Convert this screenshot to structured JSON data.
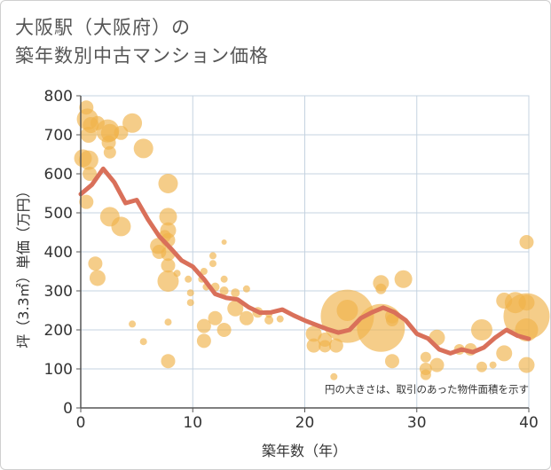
{
  "title": {
    "line1": "大阪駅（大阪府）の",
    "line2": "築年数別中古マンション価格"
  },
  "chart_data": {
    "type": "scatter",
    "xlabel": "築年数（年）",
    "ylabel": "坪（3.3㎡）単価（万円）",
    "xlim": [
      0,
      40
    ],
    "ylim": [
      0,
      800
    ],
    "xticks": [
      0,
      10,
      20,
      30,
      40
    ],
    "yticks": [
      0,
      100,
      200,
      300,
      400,
      500,
      600,
      700,
      800
    ],
    "grid": true,
    "note": "円の大きさは、取引のあった物件面積を示す",
    "colors": {
      "bubble": "#f0b24a",
      "line": "#d9705a",
      "grid": "#c5d3e0",
      "axis": "#555555"
    },
    "bubbles": [
      {
        "x": 0.2,
        "y": 640,
        "r": 10
      },
      {
        "x": 0.5,
        "y": 770,
        "r": 8
      },
      {
        "x": 0.6,
        "y": 740,
        "r": 12
      },
      {
        "x": 0.7,
        "y": 700,
        "r": 9
      },
      {
        "x": 0.7,
        "y": 635,
        "r": 11
      },
      {
        "x": 0.8,
        "y": 600,
        "r": 8
      },
      {
        "x": 0.5,
        "y": 528,
        "r": 8
      },
      {
        "x": 0.9,
        "y": 725,
        "r": 9
      },
      {
        "x": 1.5,
        "y": 730,
        "r": 8
      },
      {
        "x": 2.4,
        "y": 710,
        "r": 13
      },
      {
        "x": 2.6,
        "y": 705,
        "r": 10
      },
      {
        "x": 2.5,
        "y": 680,
        "r": 8
      },
      {
        "x": 2.6,
        "y": 655,
        "r": 7
      },
      {
        "x": 3.6,
        "y": 705,
        "r": 8
      },
      {
        "x": 4.6,
        "y": 730,
        "r": 11
      },
      {
        "x": 5.6,
        "y": 665,
        "r": 11
      },
      {
        "x": 1.3,
        "y": 370,
        "r": 8
      },
      {
        "x": 1.5,
        "y": 333,
        "r": 9
      },
      {
        "x": 2.6,
        "y": 490,
        "r": 11
      },
      {
        "x": 3.6,
        "y": 465,
        "r": 11
      },
      {
        "x": 4.6,
        "y": 215,
        "r": 4
      },
      {
        "x": 5.6,
        "y": 170,
        "r": 4
      },
      {
        "x": 6.9,
        "y": 415,
        "r": 9
      },
      {
        "x": 7.0,
        "y": 400,
        "r": 8
      },
      {
        "x": 7.5,
        "y": 440,
        "r": 7
      },
      {
        "x": 7.8,
        "y": 575,
        "r": 11
      },
      {
        "x": 7.8,
        "y": 490,
        "r": 10
      },
      {
        "x": 7.8,
        "y": 455,
        "r": 9
      },
      {
        "x": 7.8,
        "y": 430,
        "r": 8
      },
      {
        "x": 7.8,
        "y": 395,
        "r": 8
      },
      {
        "x": 7.8,
        "y": 365,
        "r": 8
      },
      {
        "x": 7.8,
        "y": 325,
        "r": 12
      },
      {
        "x": 7.8,
        "y": 220,
        "r": 4
      },
      {
        "x": 7.8,
        "y": 120,
        "r": 8
      },
      {
        "x": 8.6,
        "y": 345,
        "r": 4
      },
      {
        "x": 9.6,
        "y": 330,
        "r": 4
      },
      {
        "x": 9.8,
        "y": 295,
        "r": 4
      },
      {
        "x": 9.8,
        "y": 270,
        "r": 4
      },
      {
        "x": 10.8,
        "y": 330,
        "r": 4
      },
      {
        "x": 11.0,
        "y": 350,
        "r": 4
      },
      {
        "x": 11.2,
        "y": 310,
        "r": 4
      },
      {
        "x": 11.0,
        "y": 210,
        "r": 8
      },
      {
        "x": 11.0,
        "y": 172,
        "r": 8
      },
      {
        "x": 11.8,
        "y": 390,
        "r": 4
      },
      {
        "x": 11.8,
        "y": 370,
        "r": 4
      },
      {
        "x": 12.0,
        "y": 310,
        "r": 5
      },
      {
        "x": 12.0,
        "y": 230,
        "r": 8
      },
      {
        "x": 12.8,
        "y": 425,
        "r": 3
      },
      {
        "x": 12.8,
        "y": 330,
        "r": 4
      },
      {
        "x": 12.8,
        "y": 300,
        "r": 5
      },
      {
        "x": 12.8,
        "y": 200,
        "r": 8
      },
      {
        "x": 13.8,
        "y": 295,
        "r": 5
      },
      {
        "x": 13.8,
        "y": 255,
        "r": 9
      },
      {
        "x": 14.8,
        "y": 305,
        "r": 4
      },
      {
        "x": 14.8,
        "y": 230,
        "r": 8
      },
      {
        "x": 15.8,
        "y": 245,
        "r": 6
      },
      {
        "x": 16.8,
        "y": 225,
        "r": 5
      },
      {
        "x": 16.8,
        "y": 240,
        "r": 4
      },
      {
        "x": 17.8,
        "y": 228,
        "r": 4
      },
      {
        "x": 20.8,
        "y": 190,
        "r": 9
      },
      {
        "x": 20.8,
        "y": 160,
        "r": 8
      },
      {
        "x": 21.8,
        "y": 175,
        "r": 8
      },
      {
        "x": 21.8,
        "y": 158,
        "r": 7
      },
      {
        "x": 22.6,
        "y": 80,
        "r": 4
      },
      {
        "x": 22.8,
        "y": 160,
        "r": 8
      },
      {
        "x": 23.8,
        "y": 235,
        "r": 30
      },
      {
        "x": 23.8,
        "y": 250,
        "r": 12
      },
      {
        "x": 26.8,
        "y": 205,
        "r": 27
      },
      {
        "x": 26.8,
        "y": 320,
        "r": 9
      },
      {
        "x": 26.8,
        "y": 305,
        "r": 6
      },
      {
        "x": 27.8,
        "y": 235,
        "r": 8
      },
      {
        "x": 27.8,
        "y": 225,
        "r": 7
      },
      {
        "x": 27.8,
        "y": 120,
        "r": 8
      },
      {
        "x": 28.8,
        "y": 330,
        "r": 10
      },
      {
        "x": 30.8,
        "y": 130,
        "r": 6
      },
      {
        "x": 30.8,
        "y": 100,
        "r": 7
      },
      {
        "x": 30.8,
        "y": 85,
        "r": 6
      },
      {
        "x": 31.8,
        "y": 180,
        "r": 9
      },
      {
        "x": 31.8,
        "y": 110,
        "r": 8
      },
      {
        "x": 33.8,
        "y": 150,
        "r": 6
      },
      {
        "x": 34.8,
        "y": 150,
        "r": 7
      },
      {
        "x": 35.8,
        "y": 200,
        "r": 12
      },
      {
        "x": 35.8,
        "y": 105,
        "r": 6
      },
      {
        "x": 36.8,
        "y": 110,
        "r": 4
      },
      {
        "x": 37.8,
        "y": 275,
        "r": 9
      },
      {
        "x": 37.8,
        "y": 140,
        "r": 9
      },
      {
        "x": 38.8,
        "y": 270,
        "r": 12
      },
      {
        "x": 39.8,
        "y": 235,
        "r": 26
      },
      {
        "x": 39.8,
        "y": 270,
        "r": 9
      },
      {
        "x": 39.8,
        "y": 200,
        "r": 13
      },
      {
        "x": 39.8,
        "y": 425,
        "r": 8
      },
      {
        "x": 39.8,
        "y": 110,
        "r": 9
      }
    ],
    "trend": {
      "x": [
        0,
        1,
        2,
        3,
        4,
        5,
        6,
        7,
        8,
        9,
        10,
        11,
        12,
        13,
        14,
        15,
        16,
        17,
        18,
        19,
        20,
        21,
        22,
        23,
        24,
        25,
        26,
        27,
        28,
        29,
        30,
        31,
        32,
        33,
        34,
        35,
        36,
        37,
        38,
        39,
        40
      ],
      "y": [
        548,
        572,
        613,
        578,
        525,
        533,
        483,
        440,
        410,
        378,
        362,
        330,
        292,
        282,
        278,
        258,
        244,
        245,
        252,
        237,
        224,
        213,
        202,
        193,
        200,
        230,
        245,
        257,
        245,
        225,
        190,
        178,
        150,
        140,
        150,
        143,
        155,
        180,
        200,
        185,
        177
      ]
    }
  }
}
